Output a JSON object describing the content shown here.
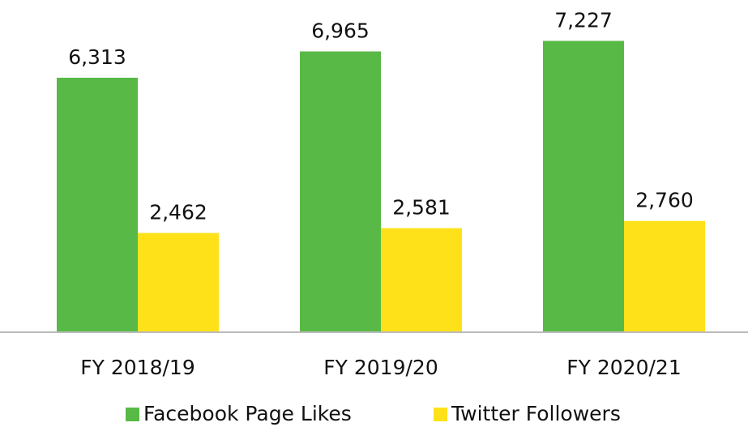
{
  "chart_data": {
    "type": "bar",
    "categories": [
      "FY 2018/19",
      "FY 2019/20",
      "FY 2020/21"
    ],
    "series": [
      {
        "name": "Facebook Page Likes",
        "color": "#58b947",
        "values": [
          6313,
          6965,
          7227
        ],
        "value_labels": [
          "6,313",
          "6,965",
          "7,227"
        ]
      },
      {
        "name": "Twitter Followers",
        "color": "#ffe11a",
        "values": [
          2462,
          2581,
          2760
        ],
        "value_labels": [
          "2,462",
          "2,581",
          "2,760"
        ]
      }
    ],
    "ylim": [
      0,
      8000
    ],
    "grid": false,
    "legend": "bottom"
  }
}
